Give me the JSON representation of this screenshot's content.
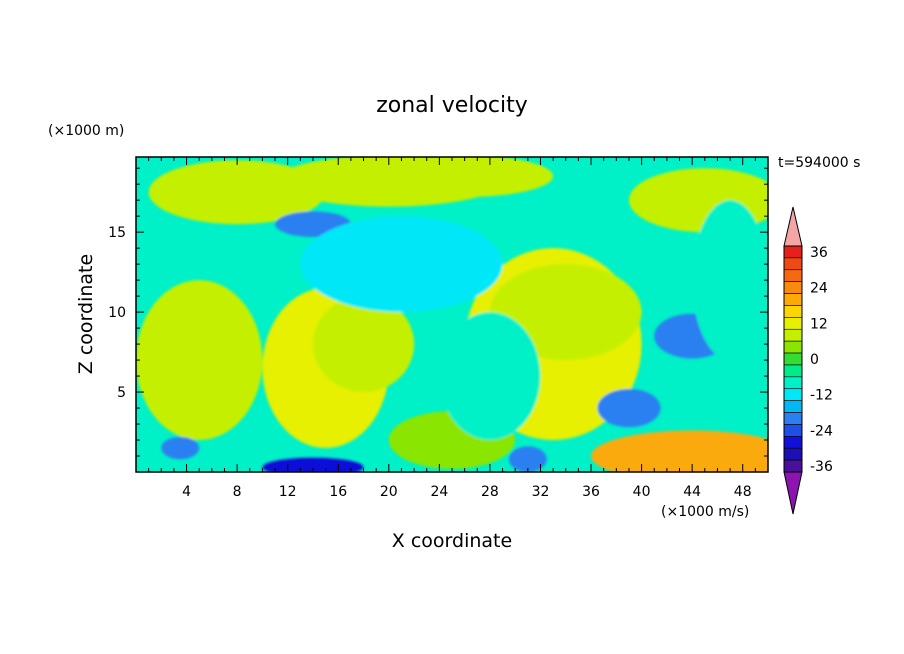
{
  "chart_data": {
    "type": "heatmap",
    "title": "zonal velocity",
    "xlabel": "X coordinate",
    "ylabel": "Z coordinate",
    "x_unit": "(×1000 m/s)",
    "y_unit": "(×1000 m)",
    "time_label": "t=594000 s",
    "xlim": [
      0,
      50
    ],
    "ylim": [
      0,
      19.7
    ],
    "x_ticks": [
      4,
      8,
      12,
      16,
      20,
      24,
      28,
      32,
      36,
      40,
      44,
      48
    ],
    "y_ticks": [
      5,
      10,
      15
    ],
    "colorbar": {
      "ticks": [
        36,
        24,
        12,
        0,
        -12,
        -24,
        -36
      ],
      "levels": [
        {
          "value": 40,
          "color": "#f4a6a6"
        },
        {
          "value": 36,
          "color": "#e8201c"
        },
        {
          "value": 32,
          "color": "#f04a14"
        },
        {
          "value": 28,
          "color": "#f56a10"
        },
        {
          "value": 24,
          "color": "#f88a0c"
        },
        {
          "value": 20,
          "color": "#fbaa08"
        },
        {
          "value": 16,
          "color": "#fcd600"
        },
        {
          "value": 12,
          "color": "#e6f000"
        },
        {
          "value": 8,
          "color": "#c4f000"
        },
        {
          "value": 4,
          "color": "#8ae600"
        },
        {
          "value": 0,
          "color": "#33dd33"
        },
        {
          "value": -4,
          "color": "#00eb8a"
        },
        {
          "value": -8,
          "color": "#00f0c8"
        },
        {
          "value": -12,
          "color": "#00e8f8"
        },
        {
          "value": -16,
          "color": "#00b8f4"
        },
        {
          "value": -20,
          "color": "#2a80f0"
        },
        {
          "value": -24,
          "color": "#1c50e6"
        },
        {
          "value": -28,
          "color": "#1010d8"
        },
        {
          "value": -32,
          "color": "#1c10b4"
        },
        {
          "value": -36,
          "color": "#4a1099"
        },
        {
          "value": -40,
          "color": "#8c14b0"
        }
      ]
    },
    "field_features": [
      {
        "x": 5,
        "z": 7,
        "value": 8
      },
      {
        "x": 8,
        "z": 17.5,
        "value": 6
      },
      {
        "x": 14,
        "z": 15.5,
        "value": -20
      },
      {
        "x": 15,
        "z": 6.5,
        "value": 10
      },
      {
        "x": 18,
        "z": 8,
        "value": 8
      },
      {
        "x": 20,
        "z": 18.2,
        "value": 8
      },
      {
        "x": 26,
        "z": 18.5,
        "value": 8
      },
      {
        "x": 25,
        "z": 2,
        "value": 4
      },
      {
        "x": 33,
        "z": 8,
        "value": 10
      },
      {
        "x": 34,
        "z": 10,
        "value": 6
      },
      {
        "x": 39,
        "z": 4,
        "value": -20
      },
      {
        "x": 44,
        "z": 8.5,
        "value": -20
      },
      {
        "x": 45,
        "z": 17,
        "value": 6
      },
      {
        "x": 44,
        "z": 1,
        "value": 20
      },
      {
        "x": 14,
        "z": 0.3,
        "value": -28
      },
      {
        "x": 3.5,
        "z": 1.5,
        "value": -20
      },
      {
        "x": 31,
        "z": 0.8,
        "value": -20
      },
      {
        "x": 21,
        "z": 13,
        "value": -12
      },
      {
        "x": 28,
        "z": 6,
        "value": -10
      },
      {
        "x": 47,
        "z": 12,
        "value": -8
      }
    ]
  }
}
